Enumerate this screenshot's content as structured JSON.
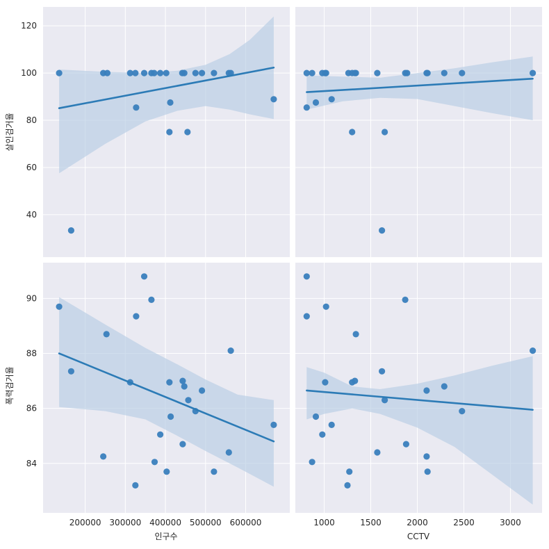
{
  "colors": {
    "panel_bg": "#eaeaf2",
    "grid": "#ffffff",
    "point": "#3a7fbd",
    "line": "#2c7bb6",
    "band": "#b7cde3"
  },
  "chart_data": [
    {
      "type": "scatter",
      "row": 0,
      "col": 0,
      "x_variable": "인구수",
      "y_variable": "살인검거율",
      "xlim": [
        95000,
        710000
      ],
      "ylim": [
        22,
        128
      ],
      "xticks": [
        200000,
        300000,
        400000,
        500000,
        600000
      ],
      "yticks": [
        40,
        60,
        80,
        100,
        120
      ],
      "points": [
        [
          135000,
          100
        ],
        [
          165000,
          33.3
        ],
        [
          245000,
          100
        ],
        [
          255000,
          100
        ],
        [
          312000,
          100
        ],
        [
          325000,
          100
        ],
        [
          327000,
          85.4
        ],
        [
          347000,
          100
        ],
        [
          365000,
          100
        ],
        [
          372000,
          100
        ],
        [
          387000,
          100
        ],
        [
          402000,
          100
        ],
        [
          410000,
          75
        ],
        [
          412000,
          87.5
        ],
        [
          442000,
          100
        ],
        [
          447000,
          100
        ],
        [
          455000,
          75
        ],
        [
          475000,
          100
        ],
        [
          491000,
          100
        ],
        [
          521000,
          100
        ],
        [
          558000,
          100
        ],
        [
          563000,
          100
        ],
        [
          670000,
          88.9
        ]
      ],
      "fit": {
        "x": [
          135000,
          670000
        ],
        "y": [
          85.1,
          102.3
        ]
      },
      "ci": {
        "x": [
          135000,
          250000,
          350000,
          430000,
          500000,
          560000,
          610000,
          670000
        ],
        "lower": [
          57.5,
          70,
          79.5,
          84,
          86,
          84.5,
          82.5,
          80.5
        ],
        "upper": [
          101.5,
          100.5,
          100,
          101,
          103.5,
          108,
          114,
          124
        ]
      }
    },
    {
      "type": "scatter",
      "row": 0,
      "col": 1,
      "x_variable": "CCTV",
      "y_variable": "살인검거율",
      "xlim": [
        690,
        3340
      ],
      "ylim": [
        22,
        128
      ],
      "xticks": [
        1000,
        1500,
        2000,
        2500,
        3000
      ],
      "yticks": [
        40,
        60,
        80,
        100,
        120
      ],
      "points": [
        [
          812,
          100
        ],
        [
          812,
          85.4
        ],
        [
          870,
          100
        ],
        [
          910,
          87.5
        ],
        [
          980,
          100
        ],
        [
          1010,
          100
        ],
        [
          1020,
          100
        ],
        [
          1080,
          88.9
        ],
        [
          1260,
          100
        ],
        [
          1300,
          100
        ],
        [
          1300,
          75
        ],
        [
          1330,
          100
        ],
        [
          1340,
          100
        ],
        [
          1570,
          100
        ],
        [
          1620,
          33.3
        ],
        [
          1650,
          75
        ],
        [
          1870,
          100
        ],
        [
          1890,
          100
        ],
        [
          2100,
          100
        ],
        [
          2110,
          100
        ],
        [
          2290,
          100
        ],
        [
          2480,
          100
        ],
        [
          3240,
          100
        ]
      ],
      "fit": {
        "x": [
          812,
          3240
        ],
        "y": [
          91.9,
          97.6
        ]
      },
      "ci": {
        "x": [
          812,
          1200,
          1600,
          2000,
          2400,
          2800,
          3240
        ],
        "lower": [
          84.5,
          88,
          89.5,
          89,
          86,
          83,
          80
        ],
        "upper": [
          99,
          98.5,
          98,
          100,
          102,
          104.5,
          107
        ]
      }
    },
    {
      "type": "scatter",
      "row": 1,
      "col": 0,
      "x_variable": "인구수",
      "y_variable": "폭력검거율",
      "xlim": [
        95000,
        710000
      ],
      "ylim": [
        82.2,
        91.3
      ],
      "xticks": [
        200000,
        300000,
        400000,
        500000,
        600000
      ],
      "yticks": [
        84,
        86,
        88,
        90
      ],
      "points": [
        [
          135000,
          89.7
        ],
        [
          165000,
          87.35
        ],
        [
          245000,
          84.25
        ],
        [
          253000,
          88.7
        ],
        [
          312000,
          86.95
        ],
        [
          325000,
          83.2
        ],
        [
          327000,
          89.35
        ],
        [
          347000,
          90.8
        ],
        [
          365000,
          89.95
        ],
        [
          373000,
          84.05
        ],
        [
          387000,
          85.05
        ],
        [
          403000,
          83.7
        ],
        [
          410000,
          86.95
        ],
        [
          413000,
          85.7
        ],
        [
          443000,
          87
        ],
        [
          443000,
          84.7
        ],
        [
          447000,
          86.8
        ],
        [
          457000,
          86.3
        ],
        [
          475000,
          85.9
        ],
        [
          491000,
          86.65
        ],
        [
          521000,
          83.7
        ],
        [
          558000,
          84.4
        ],
        [
          563000,
          88.1
        ],
        [
          670000,
          85.4
        ]
      ],
      "fit": {
        "x": [
          135000,
          670000
        ],
        "y": [
          88.0,
          84.8
        ]
      },
      "ci": {
        "x": [
          135000,
          250000,
          350000,
          430000,
          500000,
          580000,
          670000
        ],
        "lower": [
          86.05,
          85.9,
          85.6,
          85,
          84.45,
          83.85,
          83.15
        ],
        "upper": [
          90.05,
          89.05,
          88.2,
          87.6,
          87.05,
          86.5,
          86.3
        ]
      }
    },
    {
      "type": "scatter",
      "row": 1,
      "col": 1,
      "x_variable": "CCTV",
      "y_variable": "폭력검거율",
      "xlim": [
        690,
        3340
      ],
      "ylim": [
        82.2,
        91.3
      ],
      "xticks": [
        1000,
        1500,
        2000,
        2500,
        3000
      ],
      "yticks": [
        84,
        86,
        88,
        90
      ],
      "points": [
        [
          812,
          90.8
        ],
        [
          812,
          89.35
        ],
        [
          870,
          84.05
        ],
        [
          910,
          85.7
        ],
        [
          980,
          85.05
        ],
        [
          1010,
          86.95
        ],
        [
          1020,
          89.7
        ],
        [
          1080,
          85.4
        ],
        [
          1250,
          83.2
        ],
        [
          1270,
          83.7
        ],
        [
          1300,
          86.95
        ],
        [
          1330,
          87
        ],
        [
          1340,
          88.7
        ],
        [
          1570,
          84.4
        ],
        [
          1620,
          87.35
        ],
        [
          1650,
          86.3
        ],
        [
          1870,
          89.95
        ],
        [
          1880,
          84.7
        ],
        [
          2100,
          86.65
        ],
        [
          2100,
          84.25
        ],
        [
          2110,
          83.7
        ],
        [
          2290,
          86.8
        ],
        [
          2480,
          85.9
        ],
        [
          3240,
          88.1
        ]
      ],
      "fit": {
        "x": [
          812,
          3240
        ],
        "y": [
          86.65,
          85.95
        ]
      },
      "ci": {
        "x": [
          812,
          1000,
          1300,
          1600,
          2000,
          2400,
          2800,
          3240
        ],
        "lower": [
          85.6,
          85.8,
          86,
          85.8,
          85.3,
          84.6,
          83.6,
          82.5
        ],
        "upper": [
          87.5,
          87.3,
          86.8,
          86.7,
          86.9,
          87.2,
          87.55,
          87.9
        ]
      }
    }
  ],
  "axes_labels": {
    "x_bottom_left": "인구수",
    "x_bottom_right": "CCTV",
    "y_top": "살인검거율",
    "y_bottom": "폭력검거율"
  }
}
